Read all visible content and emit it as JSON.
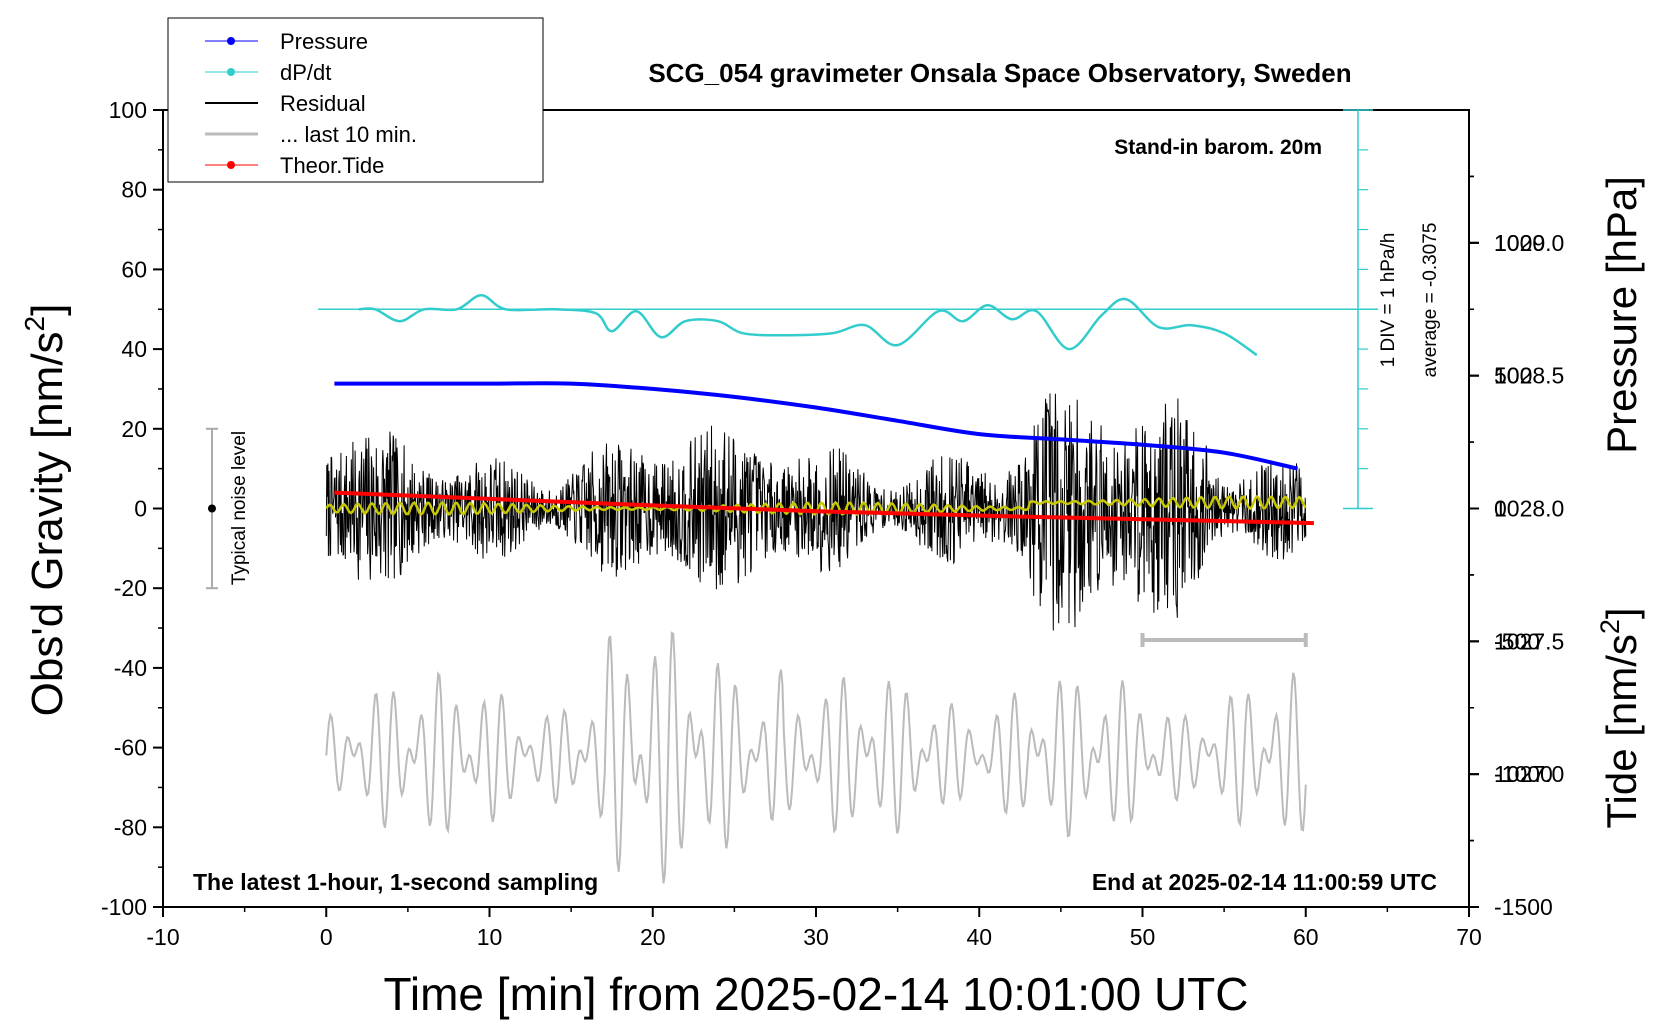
{
  "chart_data": {
    "type": "line",
    "title": "SCG_054 gravimeter Onsala Space Observatory, Sweden",
    "xlabel": "Time [min] from 2025-02-14 10:01:00 UTC",
    "ylabel_left_main": "Obs'd Gravity [nm/s",
    "ylabel_left_sup": "2",
    "ylabel_left_tail": "]",
    "ylabel_right_pressure": "Pressure [hPa]",
    "ylabel_right_tide_main": "Tide [nm/s",
    "ylabel_right_tide_sup": "2",
    "ylabel_right_tide_tail": "]",
    "xlim": [
      -10,
      70
    ],
    "ylim_gravity": [
      -100,
      100
    ],
    "ylim_pressure": [
      1026.5,
      1029.5
    ],
    "ylim_tide": [
      -1500,
      1500
    ],
    "x_ticks": [
      "-10",
      "0",
      "10",
      "20",
      "30",
      "40",
      "50",
      "60",
      "70"
    ],
    "y_ticks_gravity": [
      "-100",
      "-80",
      "-60",
      "-40",
      "-20",
      "0",
      "20",
      "40",
      "60",
      "80",
      "100"
    ],
    "y_ticks_pressure": [
      "1027.0",
      "1027.5",
      "1028.0",
      "1028.5",
      "1029.0"
    ],
    "y_ticks_tide": [
      "-1500",
      "-1000",
      "-500",
      "0",
      "500",
      "1000"
    ],
    "annotations": {
      "barometer": "Stand-in barom. 20m",
      "dpdt_scale": "1 DIV = 1 hPa/h",
      "dpdt_average": "average = -0.3075",
      "noise_label": "Typical noise level",
      "bottom_left": "The latest 1-hour, 1-second sampling",
      "bottom_right": "End at 2025-02-14 11:00:59 UTC"
    },
    "legend": [
      {
        "label": "Pressure",
        "color": "#0000ff",
        "marker": true
      },
      {
        "label": "dP/dt",
        "color": "#33cccc",
        "marker": true
      },
      {
        "label": "Residual",
        "color": "#000000",
        "marker": false
      },
      {
        "label": "... last 10 min.",
        "color": "#bbbbbb",
        "marker": false
      },
      {
        "label": "Theor.Tide",
        "color": "#ff0000",
        "marker": true
      }
    ],
    "legend_position": "top-left",
    "colors": {
      "pressure": "#0000ff",
      "dpdt": "#33cccc",
      "residual": "#000000",
      "residual_smooth": "#c8c800",
      "last10": "#bbbbbb",
      "tide": "#ff0000"
    },
    "series": {
      "pressure": {
        "name": "Pressure",
        "axis": "pressure",
        "x": [
          0.5,
          5,
          10,
          15,
          20,
          25,
          30,
          35,
          40,
          45,
          50,
          55,
          59.5
        ],
        "y": [
          1028.47,
          1028.47,
          1028.47,
          1028.47,
          1028.45,
          1028.42,
          1028.38,
          1028.33,
          1028.28,
          1028.26,
          1028.24,
          1028.21,
          1028.15
        ]
      },
      "dpdt": {
        "name": "dP/dt",
        "axis": "gravity",
        "baseline": 50,
        "x": [
          2,
          3,
          4.5,
          6,
          8,
          9.5,
          11,
          14,
          16.5,
          17.5,
          19,
          20.5,
          22,
          24,
          25.5,
          28,
          31,
          33,
          35,
          37.5,
          39,
          40.5,
          42,
          43.5,
          45.5,
          47.5,
          49,
          51,
          53,
          55,
          57
        ],
        "y": [
          50,
          50,
          47,
          50,
          50,
          53.5,
          50,
          50,
          49,
          44.5,
          49.5,
          43,
          47,
          47,
          44,
          43.5,
          44,
          46,
          41,
          49.5,
          47,
          51,
          47.5,
          49.5,
          40,
          48.5,
          52.5,
          45.5,
          46,
          44,
          38.5
        ]
      },
      "residual": {
        "name": "Residual",
        "axis": "gravity",
        "x_range": [
          0,
          60
        ],
        "envelope": 22,
        "seed": 7
      },
      "last10": {
        "name": "... last 10 min.",
        "axis": "gravity",
        "x_range": [
          0,
          60
        ],
        "center": -62,
        "envelope": 14,
        "seed": 3
      },
      "tide": {
        "name": "Theor.Tide",
        "axis": "tide",
        "x": [
          0.5,
          30,
          60.5
        ],
        "y": [
          60,
          -10,
          -55
        ]
      }
    },
    "noise_bar": {
      "x": -7,
      "y_min": -20,
      "y_max": 20,
      "center": 0
    },
    "scale_bar": {
      "x_start": 50,
      "x_end": 60,
      "y": -33
    }
  }
}
